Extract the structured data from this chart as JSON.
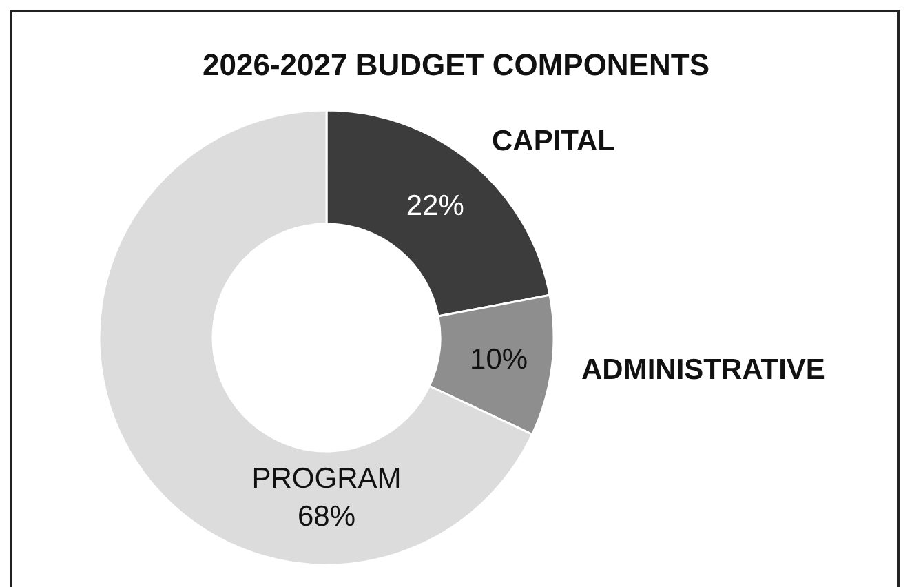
{
  "chart_data": {
    "type": "donut",
    "title": "2026-2027 BUDGET COMPONENTS",
    "categories": [
      "CAPITAL",
      "ADMINISTRATIVE",
      "PROGRAM"
    ],
    "values": [
      22,
      10,
      68
    ],
    "value_labels": [
      "22%",
      "10%",
      "68%"
    ],
    "colors": [
      "#3c3c3c",
      "#8e8e8e",
      "#dcdcdc"
    ],
    "legend": false
  }
}
